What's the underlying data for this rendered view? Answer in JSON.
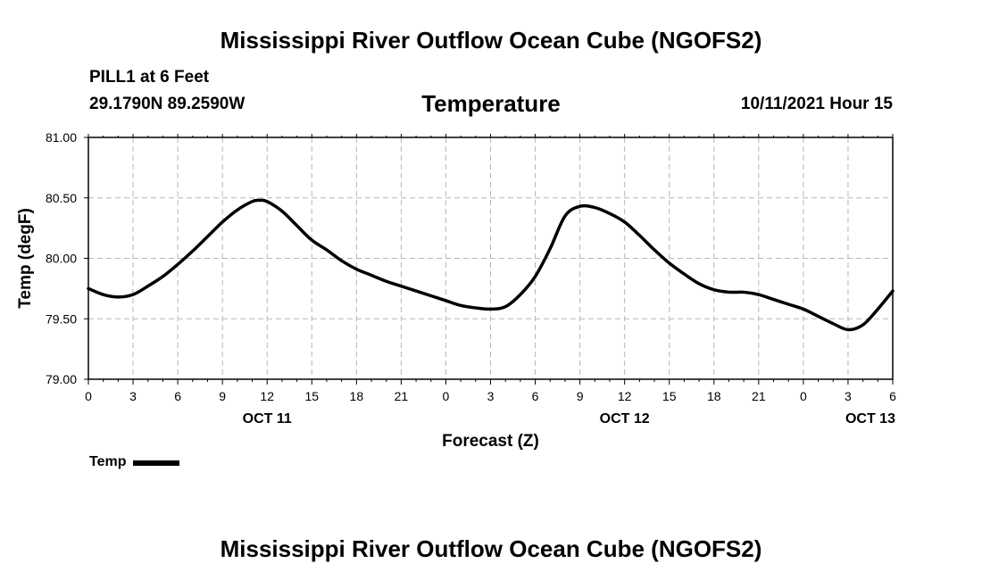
{
  "header": {
    "title": "Mississippi River Outflow Ocean Cube (NGOFS2)",
    "station": "PILL1 at 6 Feet",
    "coords": "29.1790N  89.2590W",
    "subtitle": "Temperature",
    "timestamp": "10/11/2021 Hour 15"
  },
  "footer": {
    "title": "Mississippi River Outflow Ocean Cube (NGOFS2)"
  },
  "legend": {
    "label": "Temp"
  },
  "chart_data": {
    "type": "line",
    "title": "Temperature",
    "xlabel": "Forecast (Z)",
    "ylabel": "Temp (degF)",
    "xlim": [
      0,
      54
    ],
    "ylim": [
      79.0,
      81.0
    ],
    "x_unit": "hours from 00Z OCT 11",
    "yticks": [
      "79.00",
      "79.50",
      "80.00",
      "80.50",
      "81.00"
    ],
    "xticks": [
      {
        "hour": 0,
        "label": "0"
      },
      {
        "hour": 3,
        "label": "3"
      },
      {
        "hour": 6,
        "label": "6"
      },
      {
        "hour": 9,
        "label": "9"
      },
      {
        "hour": 12,
        "label": "12"
      },
      {
        "hour": 15,
        "label": "15"
      },
      {
        "hour": 18,
        "label": "18"
      },
      {
        "hour": 21,
        "label": "21"
      },
      {
        "hour": 24,
        "label": "0"
      },
      {
        "hour": 27,
        "label": "3"
      },
      {
        "hour": 30,
        "label": "6"
      },
      {
        "hour": 33,
        "label": "9"
      },
      {
        "hour": 36,
        "label": "12"
      },
      {
        "hour": 39,
        "label": "15"
      },
      {
        "hour": 42,
        "label": "18"
      },
      {
        "hour": 45,
        "label": "21"
      },
      {
        "hour": 48,
        "label": "0"
      },
      {
        "hour": 51,
        "label": "3"
      },
      {
        "hour": 54,
        "label": "6"
      }
    ],
    "date_labels": [
      {
        "hour": 12,
        "label": "OCT 11"
      },
      {
        "hour": 36,
        "label": "OCT 12"
      },
      {
        "hour": 52.5,
        "label": "OCT 13"
      }
    ],
    "grid": true,
    "series": [
      {
        "name": "Temp",
        "color": "#000000",
        "x": [
          0,
          1,
          2,
          3,
          4,
          5,
          6,
          7,
          8,
          9,
          10,
          11,
          11.5,
          12,
          13,
          14,
          15,
          16,
          17,
          18,
          19,
          20,
          21,
          22,
          23,
          24,
          25,
          26,
          27,
          28,
          29,
          30,
          31,
          32,
          33,
          34,
          35,
          36,
          37,
          38,
          39,
          40,
          41,
          42,
          43,
          44,
          45,
          46,
          47,
          48,
          49,
          50,
          51,
          52,
          53,
          54
        ],
        "values": [
          79.75,
          79.7,
          79.68,
          79.7,
          79.77,
          79.85,
          79.95,
          80.06,
          80.18,
          80.3,
          80.4,
          80.47,
          80.48,
          80.47,
          80.39,
          80.27,
          80.15,
          80.07,
          79.98,
          79.91,
          79.86,
          79.81,
          79.77,
          79.73,
          79.69,
          79.65,
          79.61,
          79.59,
          79.58,
          79.6,
          79.7,
          79.85,
          80.08,
          80.35,
          80.43,
          80.42,
          80.37,
          80.3,
          80.19,
          80.07,
          79.96,
          79.87,
          79.79,
          79.74,
          79.72,
          79.72,
          79.7,
          79.66,
          79.62,
          79.58,
          79.52,
          79.46,
          79.41,
          79.45,
          79.58,
          79.73
        ]
      }
    ]
  }
}
